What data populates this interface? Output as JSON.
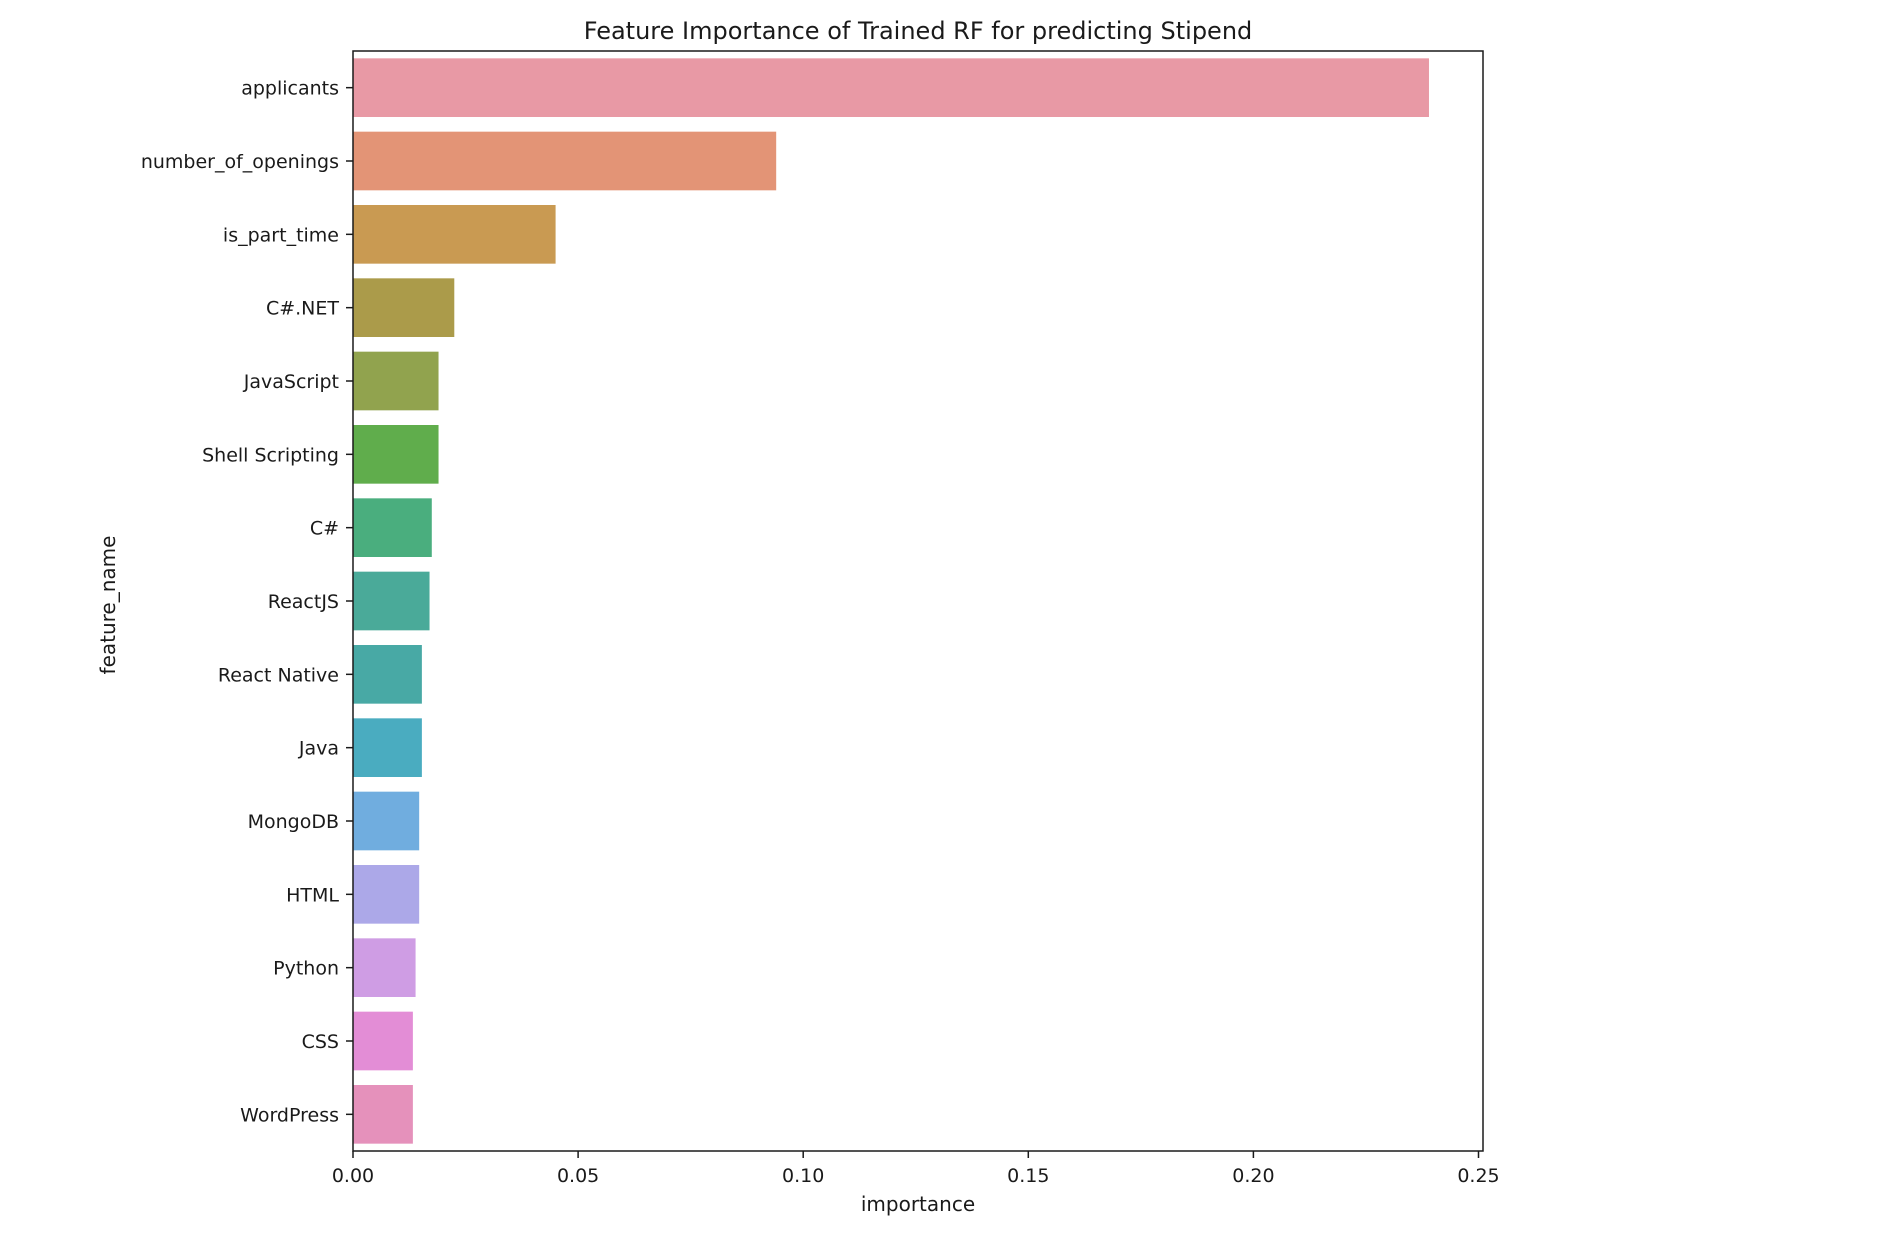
{
  "chart_data": {
    "type": "bar",
    "orientation": "horizontal",
    "title": "Feature Importance of Trained RF for predicting Stipend",
    "xlabel": "importance",
    "ylabel": "feature_name",
    "xlim": [
      0,
      0.251
    ],
    "x_ticks": [
      0.0,
      0.05,
      0.1,
      0.15,
      0.2,
      0.25
    ],
    "x_tick_labels": [
      "0.00",
      "0.05",
      "0.10",
      "0.15",
      "0.20",
      "0.25"
    ],
    "grid": false,
    "categories": [
      "applicants",
      "number_of_openings",
      "is_part_time",
      "C#.NET",
      "JavaScript",
      "Shell Scripting",
      "C#",
      "ReactJS",
      "React Native",
      "Java",
      "MongoDB",
      "HTML",
      "Python",
      "CSS",
      "WordPress"
    ],
    "values": [
      0.239,
      0.094,
      0.045,
      0.0225,
      0.019,
      0.019,
      0.0175,
      0.017,
      0.0153,
      0.0153,
      0.0147,
      0.0147,
      0.0139,
      0.0133,
      0.0133
    ],
    "colors": [
      "#e899a5",
      "#e39476",
      "#c99a52",
      "#ab9b4a",
      "#91a34e",
      "#60ad4c",
      "#4aae7e",
      "#4aaa99",
      "#48a9a5",
      "#4aacc0",
      "#70addf",
      "#aca8e8",
      "#cf9de4",
      "#e38dd6",
      "#e591bb"
    ]
  }
}
